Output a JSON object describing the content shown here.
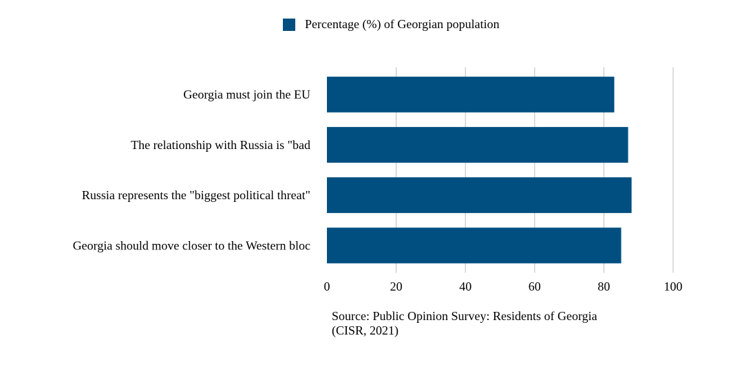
{
  "chart_data": {
    "type": "bar",
    "orientation": "horizontal",
    "categories": [
      "Georgia must join the EU",
      "The relationship with Russia is \"bad",
      "Russia represents the \"biggest political threat\"",
      "Georgia should move closer to the Western bloc"
    ],
    "series": [
      {
        "name": "Percentage (%) of Georgian population",
        "values": [
          83,
          87,
          88,
          85
        ],
        "color": "#004f80"
      }
    ],
    "xlim": [
      0,
      100
    ],
    "xticks": [
      0,
      20,
      40,
      60,
      80,
      100
    ],
    "grid": true,
    "legend_position": "top-center",
    "source": "Source: Public Opinion Survey: Residents of Georgia (CISR, 2021)"
  }
}
